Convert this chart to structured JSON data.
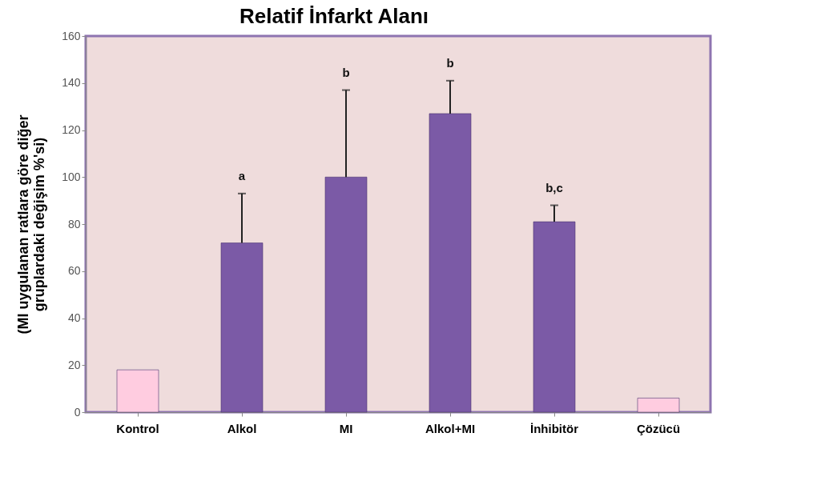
{
  "chart_data": {
    "type": "bar",
    "title": "Relatif İnfarkt Alanı",
    "ylabel": "(MI uygulanan ratlara  göre diğer\ngruplardaki değişim %'si)",
    "categories": [
      "Kontrol",
      "Alkol",
      "MI",
      "Alkol+MI",
      "İnhibitör",
      "Çözücü"
    ],
    "values": [
      18,
      72,
      100,
      127,
      81,
      6
    ],
    "colors": [
      "#ffcce0",
      "#7b5aa6",
      "#7b5aa6",
      "#7b5aa6",
      "#7b5aa6",
      "#ffcce0"
    ],
    "errors": [
      null,
      [
        72,
        93
      ],
      [
        100,
        137
      ],
      [
        127,
        141
      ],
      [
        81,
        88
      ],
      null
    ],
    "annotations": [
      {
        "text": "a",
        "x": "Alkol",
        "y": 93
      },
      {
        "text": "b",
        "x": "MI",
        "y": 137
      },
      {
        "text": "b",
        "x": "Alkol+MI",
        "y": 141
      },
      {
        "text": "b,c",
        "x": "İnhibitör",
        "y": 88
      }
    ],
    "ylim": [
      0,
      160
    ],
    "yticks": [
      0,
      20,
      40,
      60,
      80,
      100,
      120,
      140,
      160
    ],
    "grid": false
  }
}
